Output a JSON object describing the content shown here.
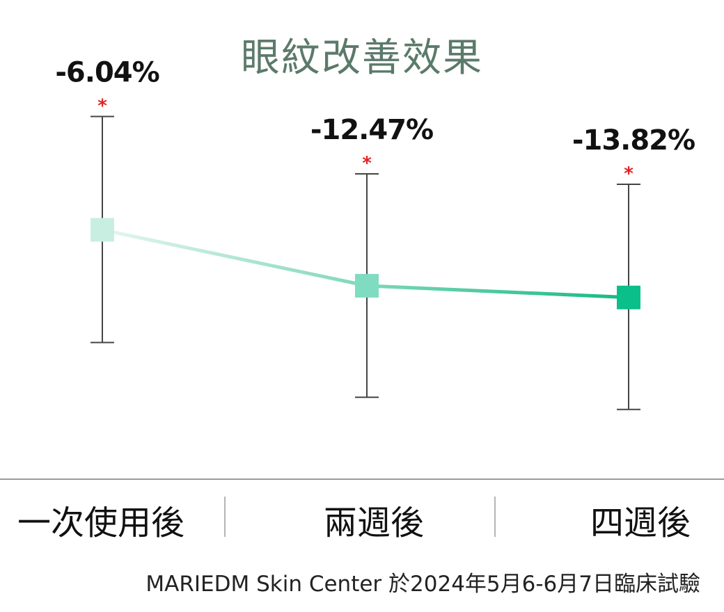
{
  "chart_data": {
    "type": "line",
    "title": "眼紋改善效果",
    "categories": [
      "一次使用後",
      "兩週後",
      "四週後"
    ],
    "values": [
      -6.04,
      -12.47,
      -13.82
    ],
    "data_labels": [
      "-6.04%",
      "-12.47%",
      "-13.82%"
    ],
    "significance_markers": [
      "*",
      "*",
      "*"
    ],
    "error_bars": [
      {
        "low": -19.0,
        "high": 7.0
      },
      {
        "low": -25.3,
        "high": 0.4
      },
      {
        "low": -26.7,
        "high": -0.8
      }
    ],
    "ylim": [
      -30,
      10
    ],
    "colors": {
      "points": [
        "#c8eee2",
        "#7fdcc0",
        "#0bbf8a"
      ],
      "line_start": "#e6f6f0",
      "line_end": "#15b985",
      "whisker": "#444444",
      "asterisk": "#e32222",
      "title": "#5b7a6a",
      "axis": "#9a9a9a"
    },
    "legend": "none",
    "grid": false
  },
  "footer": {
    "text": "MARIEDM Skin Center 於2024年5月6-6月7日臨床試驗"
  }
}
